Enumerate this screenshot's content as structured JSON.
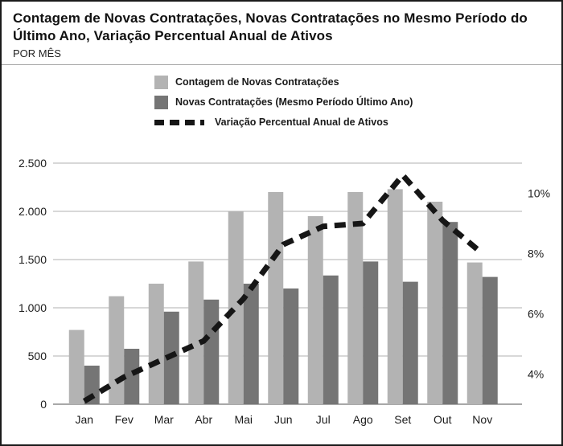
{
  "header": {
    "title": "Contagem de Novas Contratações, Novas Contratações no Mesmo Período do Último Ano, Variação Percentual Anual de Ativos",
    "subtitle": "POR MÊS"
  },
  "legend": {
    "items": [
      {
        "label": "Contagem de Novas Contratações",
        "swatch": "light-gray-square",
        "color": "#b3b3b3"
      },
      {
        "label": "Novas Contratações (Mesmo Período Último Ano)",
        "swatch": "dark-gray-square",
        "color": "#757575"
      },
      {
        "label": "Variação Percentual Anual de Ativos",
        "swatch": "black-dashed-line",
        "color": "#161616"
      }
    ]
  },
  "chart_data": {
    "type": "combo",
    "categories": [
      "Jan",
      "Fev",
      "Mar",
      "Abr",
      "Mai",
      "Jun",
      "Jul",
      "Ago",
      "Set",
      "Out",
      "Nov"
    ],
    "series": [
      {
        "name": "Contagem de Novas Contratações",
        "type": "bar",
        "axis": "left",
        "color": "#b3b3b3",
        "values": [
          770,
          1120,
          1250,
          1480,
          2000,
          2200,
          1950,
          2200,
          2230,
          2100,
          1470
        ]
      },
      {
        "name": "Novas Contratações (Mesmo Período Último Ano)",
        "type": "bar",
        "axis": "left",
        "color": "#757575",
        "values": [
          400,
          575,
          960,
          1085,
          1250,
          1200,
          1335,
          1480,
          1270,
          1890,
          1320
        ]
      },
      {
        "name": "Variação Percentual Anual de Ativos",
        "type": "line",
        "style": "dashed",
        "axis": "right",
        "color": "#161616",
        "values": [
          3.1,
          3.9,
          4.5,
          5.1,
          6.5,
          8.3,
          8.9,
          9.0,
          10.6,
          9.1,
          8.0
        ]
      }
    ],
    "left_axis": {
      "range": [
        0,
        2500
      ],
      "tick_values": [
        0,
        500,
        1000,
        1500,
        2000,
        2500
      ],
      "tick_labels": [
        "0",
        "500",
        "1.000",
        "1.500",
        "2.000",
        "2.500"
      ]
    },
    "right_axis": {
      "range": [
        3,
        11
      ],
      "tick_values": [
        4,
        6,
        8,
        10
      ],
      "tick_labels": [
        "4%",
        "6%",
        "8%",
        "10%"
      ]
    },
    "grid": true,
    "legend_position": "top",
    "colors": {
      "gridline": "#b0b0b0",
      "baseline": "#8c8c8c",
      "text": "#1c1c1c"
    }
  }
}
